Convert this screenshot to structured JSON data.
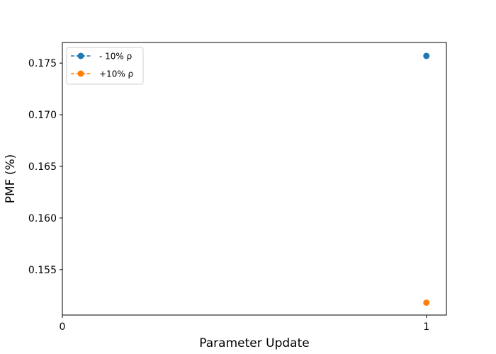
{
  "chart_data": {
    "type": "scatter",
    "xlabel": "Parameter Update",
    "ylabel": "PMF (%)",
    "xlim": [
      0,
      1.055
    ],
    "ylim": [
      0.1506,
      0.177
    ],
    "xticks": [
      0,
      1
    ],
    "yticks": [
      0.155,
      0.16,
      0.165,
      0.17,
      0.175
    ],
    "ytick_labels": [
      "0.155",
      "0.160",
      "0.165",
      "0.170",
      "0.175"
    ],
    "grid": false,
    "legend_position": "top-left",
    "series": [
      {
        "name": "- 10% ρ",
        "color": "#1f77b4",
        "line_style": "dashed",
        "marker": "circle",
        "x": [
          1
        ],
        "y": [
          0.1757
        ]
      },
      {
        "name": "+10% ρ",
        "color": "#ff7f0e",
        "line_style": "dashed",
        "marker": "circle",
        "x": [
          1
        ],
        "y": [
          0.1518
        ]
      }
    ]
  }
}
